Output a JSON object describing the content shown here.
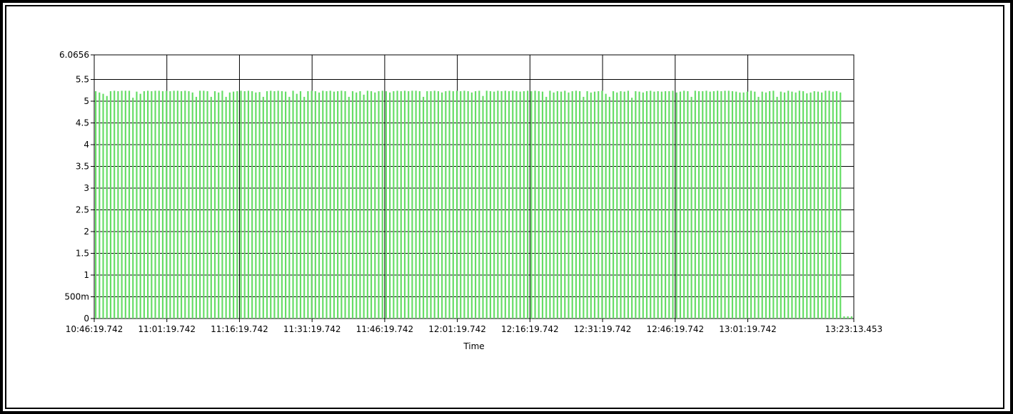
{
  "chart_data": {
    "type": "bar",
    "xlabel": "Time",
    "ylabel": "",
    "title": "",
    "ylim": [
      0,
      6.0656
    ],
    "y_ticks": [
      "0",
      "500m",
      "1",
      "1.5",
      "2",
      "2.5",
      "3",
      "3.5",
      "4",
      "4.5",
      "5",
      "5.5",
      "6.0656"
    ],
    "x_ticks": [
      "10:46:19.742",
      "11:01:19.742",
      "11:16:19.742",
      "11:31:19.742",
      "11:46:19.742",
      "12:01:19.742",
      "12:16:19.742",
      "12:31:19.742",
      "12:46:19.742",
      "13:01:19.742",
      "13:23:13.453"
    ],
    "x_range": [
      "10:46:19.742",
      "13:23:13.453"
    ],
    "grid": true,
    "bar_color": "#66dd66",
    "series": [
      {
        "values": [
          5.23,
          5.2,
          5.17,
          5.12,
          5.23,
          5.24,
          5.23,
          5.24,
          5.24,
          5.24,
          5.08,
          5.22,
          5.17,
          5.23,
          5.24,
          5.23,
          5.24,
          5.24,
          5.23,
          5.24,
          5.23,
          5.24,
          5.24,
          5.23,
          5.24,
          5.23,
          5.2,
          5.1,
          5.24,
          5.24,
          5.23,
          5.1,
          5.23,
          5.2,
          5.24,
          5.1,
          5.2,
          5.22,
          5.23,
          5.24,
          5.23,
          5.24,
          5.23,
          5.2,
          5.21,
          5.1,
          5.23,
          5.24,
          5.23,
          5.24,
          5.23,
          5.22,
          5.1,
          5.24,
          5.17,
          5.23,
          5.1,
          5.23,
          5.24,
          5.23,
          5.2,
          5.24,
          5.23,
          5.24,
          5.22,
          5.23,
          5.24,
          5.23,
          5.1,
          5.23,
          5.2,
          5.23,
          5.15,
          5.24,
          5.23,
          5.2,
          5.23,
          5.24,
          5.23,
          5.2,
          5.23,
          5.24,
          5.23,
          5.24,
          5.23,
          5.24,
          5.24,
          5.23,
          5.1,
          5.23,
          5.23,
          5.24,
          5.23,
          5.2,
          5.23,
          5.24,
          5.23,
          5.24,
          5.23,
          5.24,
          5.23,
          5.2,
          5.23,
          5.24,
          5.12,
          5.24,
          5.23,
          5.22,
          5.24,
          5.23,
          5.24,
          5.23,
          5.24,
          5.23,
          5.22,
          5.23,
          5.24,
          5.23,
          5.24,
          5.23,
          5.22,
          5.1,
          5.24,
          5.2,
          5.23,
          5.22,
          5.24,
          5.2,
          5.23,
          5.24,
          5.23,
          5.1,
          5.23,
          5.2,
          5.22,
          5.23,
          5.24,
          5.17,
          5.1,
          5.23,
          5.2,
          5.23,
          5.22,
          5.24,
          5.08,
          5.23,
          5.22,
          5.2,
          5.23,
          5.24,
          5.22,
          5.23,
          5.22,
          5.23,
          5.23,
          5.24,
          5.2,
          5.22,
          5.24,
          5.23,
          5.1,
          5.24,
          5.23,
          5.23,
          5.24,
          5.22,
          5.23,
          5.24,
          5.23,
          5.24,
          5.24,
          5.23,
          5.22,
          5.2,
          5.2,
          5.22,
          5.24,
          5.22,
          5.1,
          5.22,
          5.2,
          5.23,
          5.24,
          5.1,
          5.22,
          5.2,
          5.24,
          5.22,
          5.2,
          5.24,
          5.23,
          5.18,
          5.2,
          5.23,
          5.22,
          5.2,
          5.24,
          5.24,
          5.22,
          5.23,
          5.2,
          0.05,
          0.05,
          0.05
        ]
      }
    ]
  }
}
